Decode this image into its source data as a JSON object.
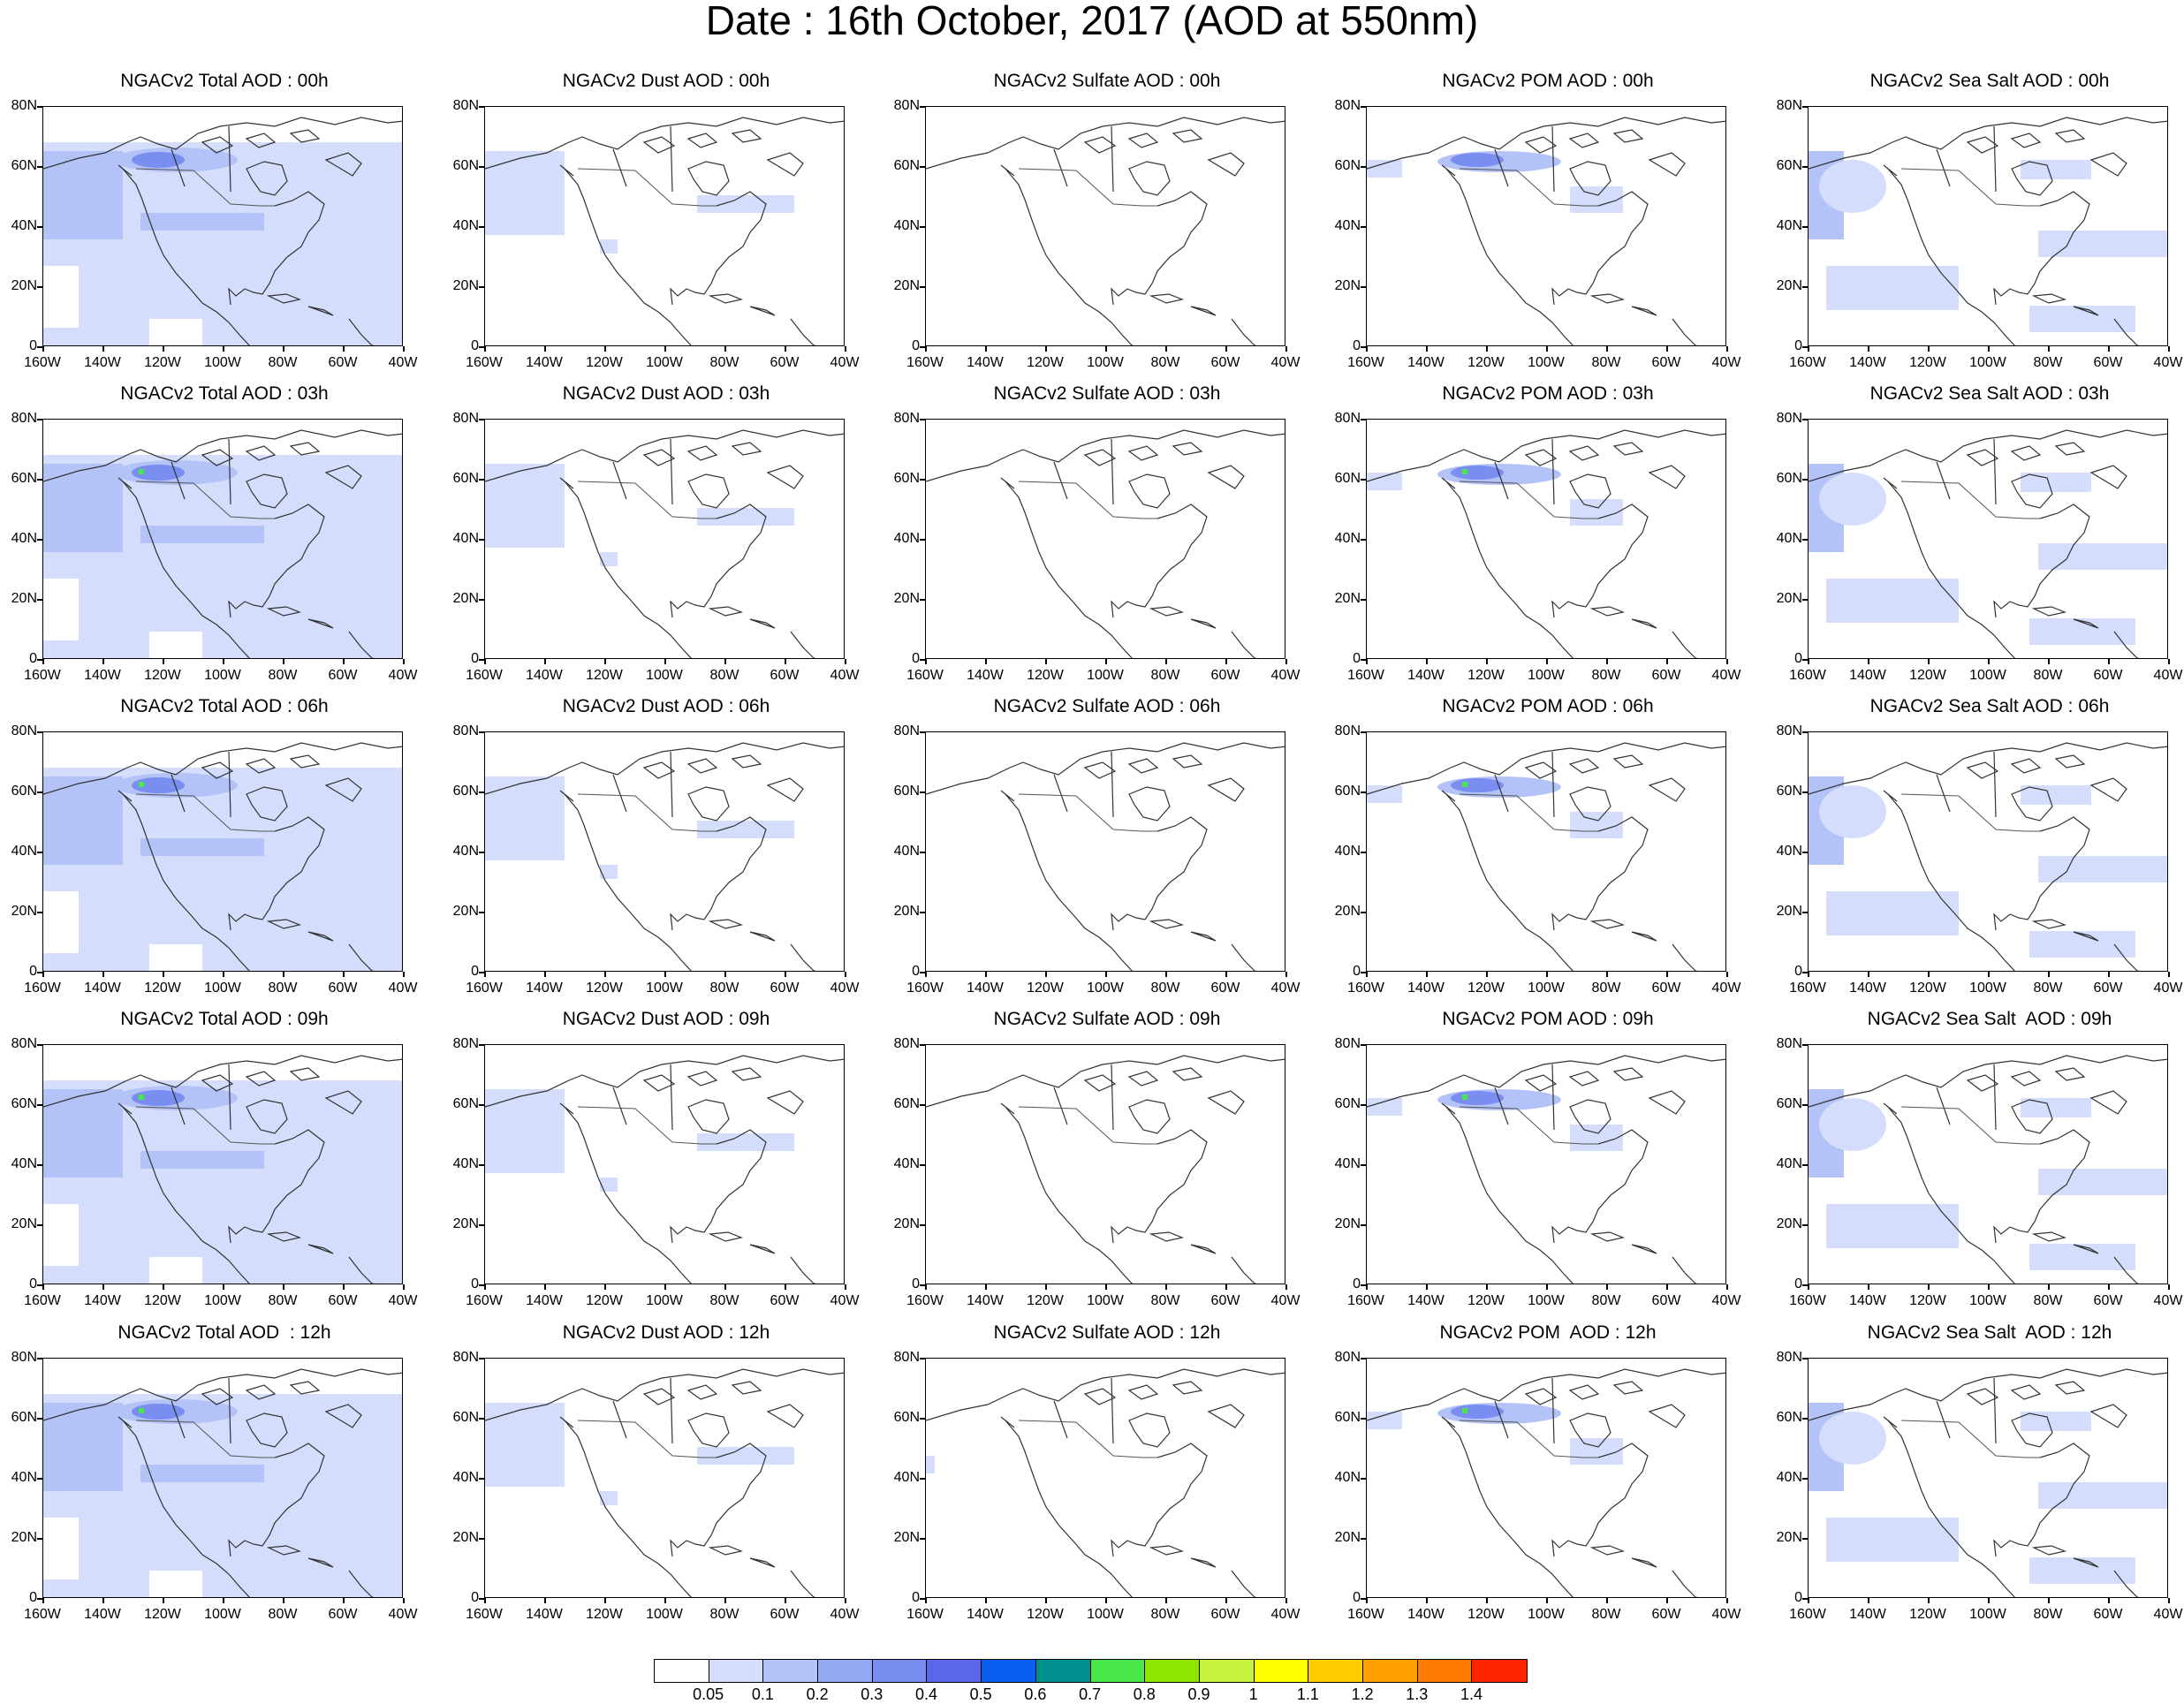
{
  "title": "Date : 16th October, 2017 (AOD at 550nm)",
  "rows": [
    [
      "NGACv2 Total AOD : 00h",
      "NGACv2 Dust AOD : 00h",
      "NGACv2 Sulfate AOD : 00h",
      "NGACv2 POM AOD : 00h",
      "NGACv2 Sea Salt AOD : 00h"
    ],
    [
      "NGACv2 Total AOD : 03h",
      "NGACv2 Dust AOD : 03h",
      "NGACv2 Sulfate AOD : 03h",
      "NGACv2 POM AOD : 03h",
      "NGACv2 Sea Salt AOD : 03h"
    ],
    [
      "NGACv2 Total AOD : 06h",
      "NGACv2 Dust AOD : 06h",
      "NGACv2 Sulfate AOD : 06h",
      "NGACv2 POM AOD : 06h",
      "NGACv2 Sea Salt AOD : 06h"
    ],
    [
      "NGACv2 Total AOD : 09h",
      "NGACv2 Dust AOD : 09h",
      "NGACv2 Sulfate AOD : 09h",
      "NGACv2 POM AOD : 09h",
      "NGACv2 Sea Salt  AOD : 09h"
    ],
    [
      "NGACv2 Total AOD  : 12h",
      "NGACv2 Dust AOD : 12h",
      "NGACv2 Sulfate AOD : 12h",
      "NGACv2 POM  AOD : 12h",
      "NGACv2 Sea Salt  AOD : 12h"
    ]
  ],
  "y_ticks": [
    "80N",
    "60N",
    "40N",
    "20N",
    "0"
  ],
  "x_ticks": [
    "160W",
    "140W",
    "120W",
    "100W",
    "80W",
    "60W",
    "40W"
  ],
  "colorbar": {
    "colors": [
      "#ffffff",
      "#d4ddfb",
      "#b3c2f7",
      "#94a8f3",
      "#7a8df0",
      "#5c66e9",
      "#0a5ff0",
      "#009090",
      "#48e84b",
      "#8ee600",
      "#c5f23f",
      "#ffff00",
      "#ffcc00",
      "#ffa000",
      "#ff7a00",
      "#ff2400"
    ],
    "labels": [
      "0.05",
      "0.1",
      "0.2",
      "0.3",
      "0.4",
      "0.5",
      "0.6",
      "0.7",
      "0.8",
      "0.9",
      "1",
      "1.1",
      "1.2",
      "1.3",
      "1.4"
    ]
  }
}
